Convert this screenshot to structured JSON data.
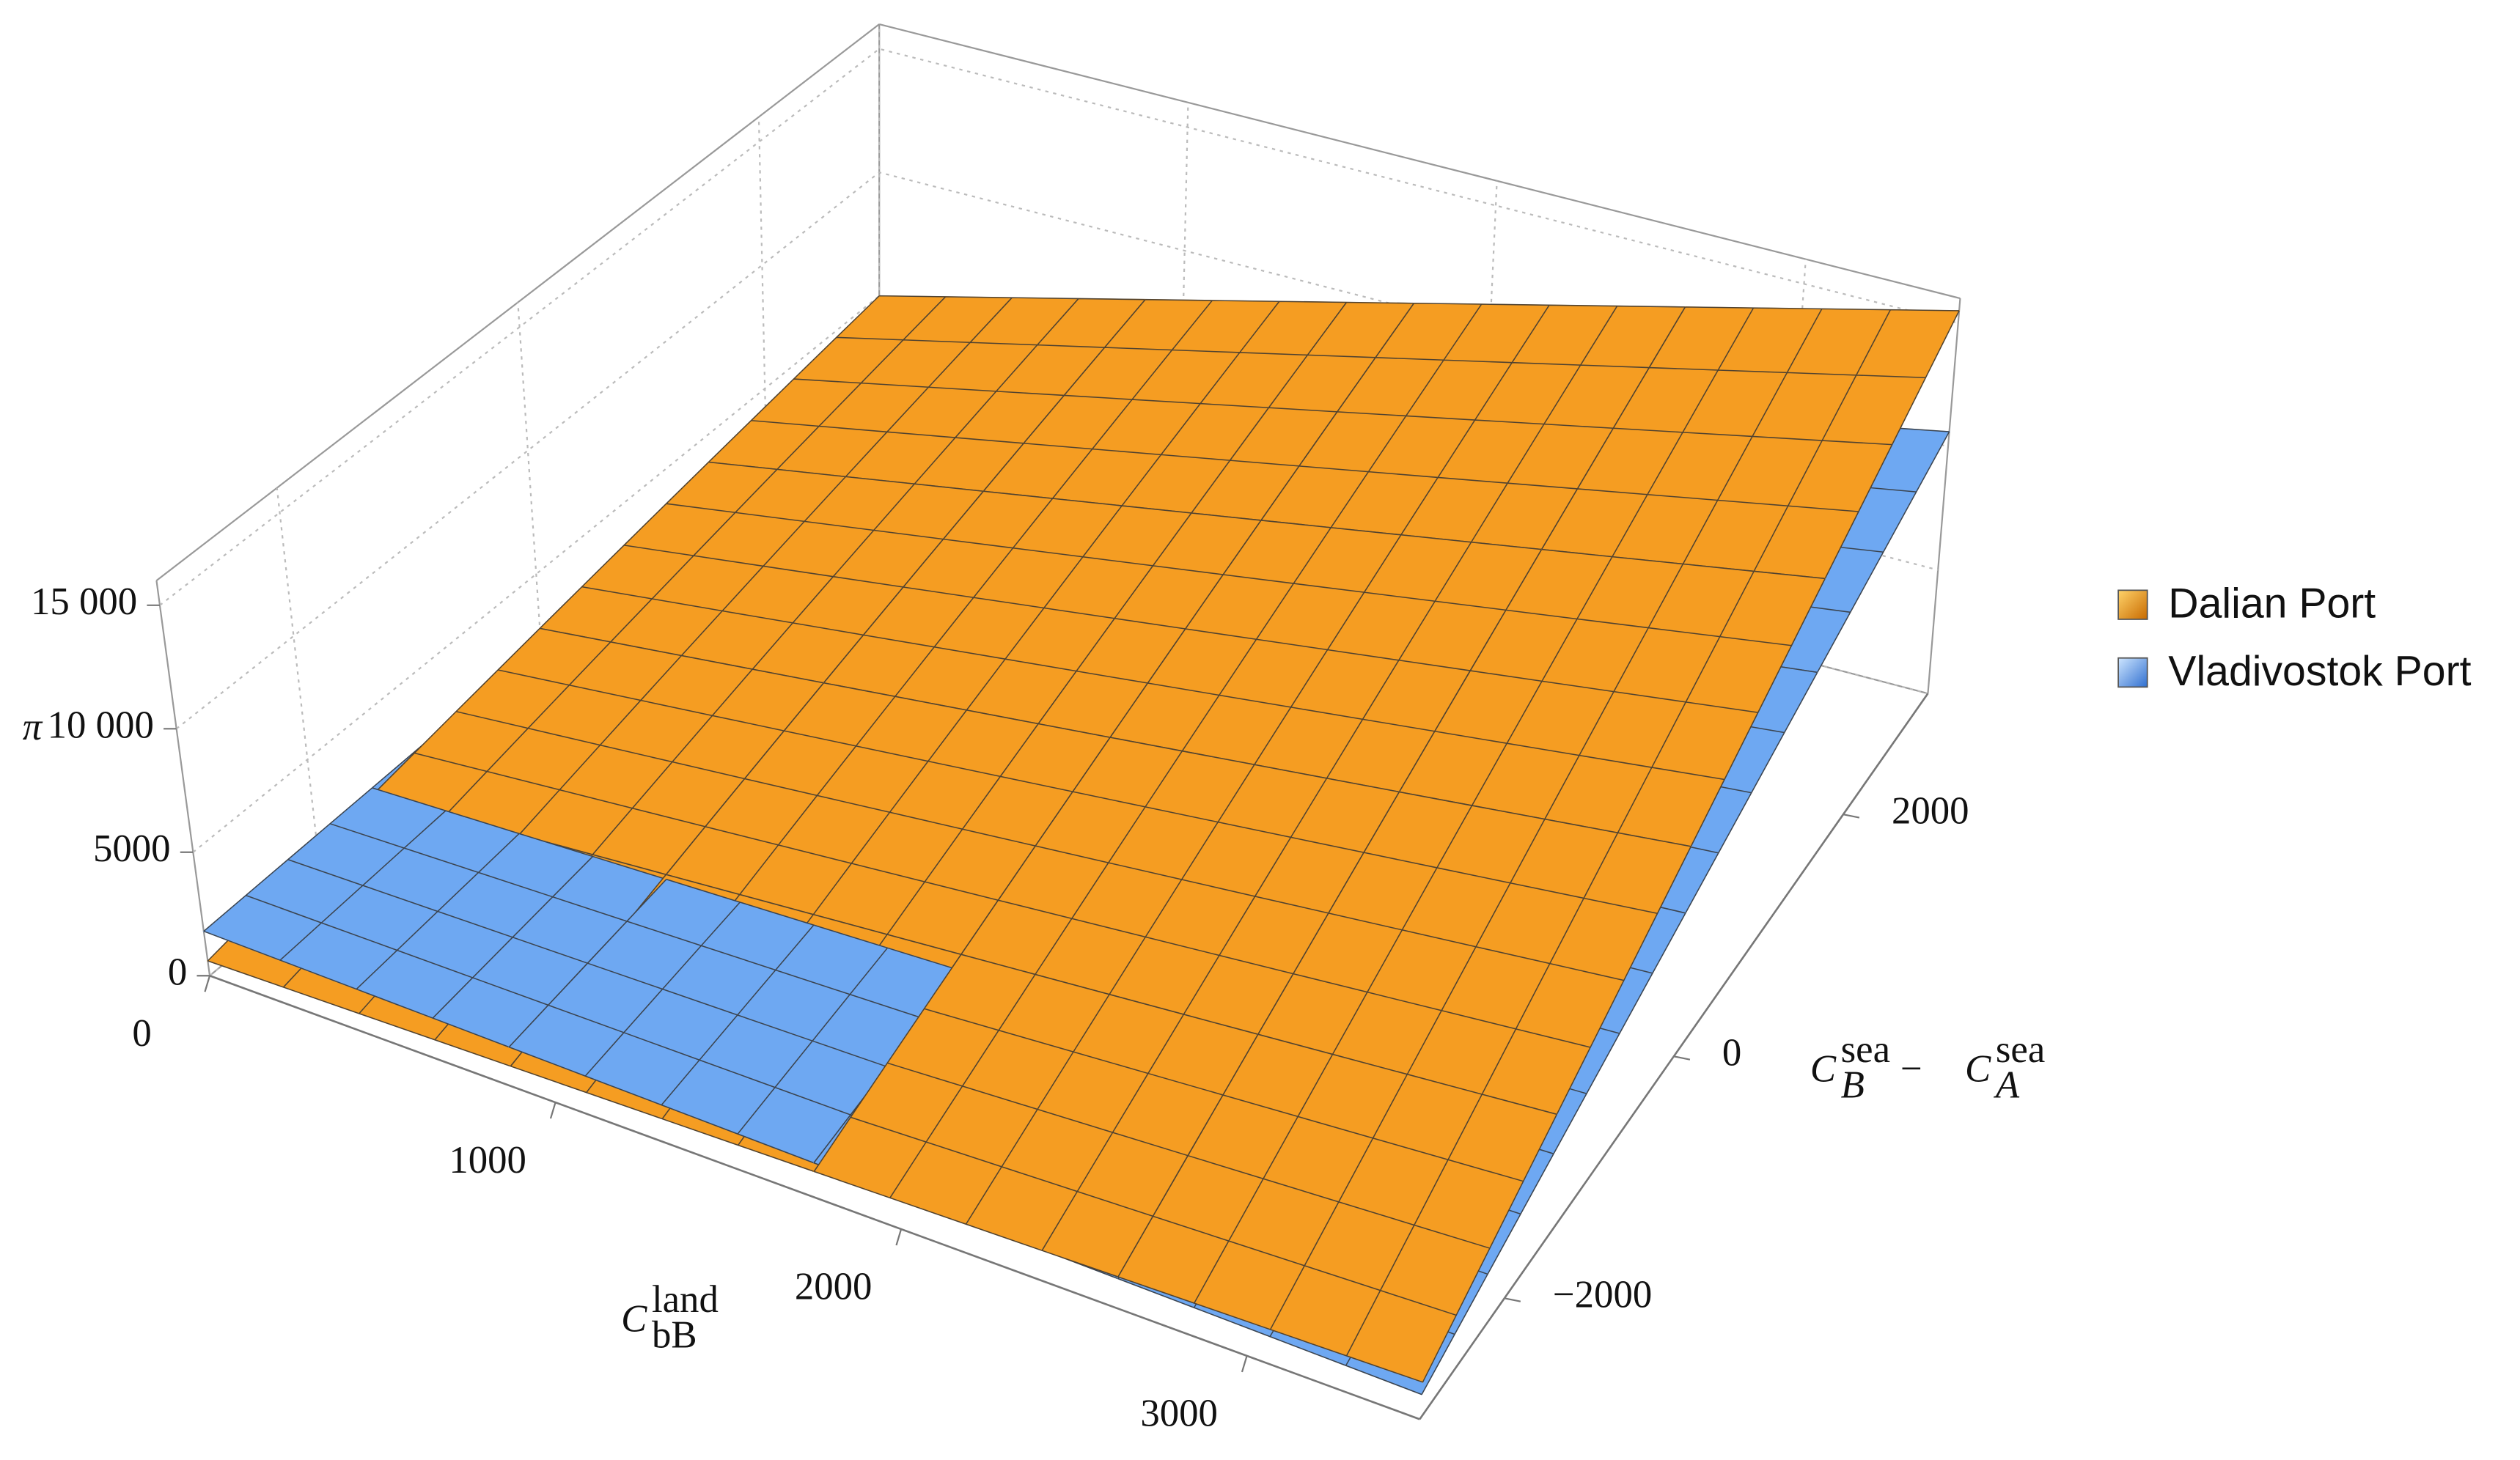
{
  "chart_data": {
    "type": "surface3d",
    "xlabel": {
      "main": "C",
      "sub": "bB",
      "sup": "land"
    },
    "ylabel": [
      {
        "main": "C",
        "sub": "B",
        "sup": "sea"
      },
      "−",
      {
        "main": "C",
        "sub": "A",
        "sup": "sea"
      }
    ],
    "zlabel": "π",
    "xlim": [
      0,
      3500
    ],
    "ylim": [
      -3000,
      3000
    ],
    "zlim": [
      0,
      16000
    ],
    "xticks": [
      0,
      1000,
      2000,
      3000
    ],
    "yticks": [
      {
        "value": -2000,
        "label": "−2000"
      },
      0,
      2000
    ],
    "zticks": [
      0,
      5000,
      {
        "value": 10000,
        "label": "10 000"
      },
      {
        "value": 15000,
        "label": "15 000"
      }
    ],
    "grid": true,
    "legend": "right",
    "x": [
      0,
      875,
      1750,
      2625,
      3500
    ],
    "y": [
      -3000,
      -1500,
      0,
      1500,
      3000
    ],
    "series": [
      {
        "name": "Dalian Port",
        "color": "#f59d22",
        "values": [
          [
            600,
            825,
            1050,
            1275,
            1500
          ],
          [
            1700,
            2525,
            3350,
            4175,
            5000
          ],
          [
            2800,
            4225,
            5650,
            7075,
            8500
          ],
          [
            3900,
            5925,
            7950,
            9975,
            12000
          ],
          [
            5000,
            7625,
            10250,
            12875,
            15500
          ]
        ]
      },
      {
        "name": "Vladivostok Port",
        "color": "#6ea8f2",
        "values": [
          [
            1800,
            1600,
            1400,
            1200,
            1000
          ],
          [
            1975,
            2330,
            2690,
            3040,
            3400
          ],
          [
            2150,
            3060,
            3980,
            4890,
            5800
          ],
          [
            2325,
            3790,
            5260,
            6730,
            8200
          ],
          [
            2500,
            4525,
            6550,
            8575,
            10600
          ]
        ]
      }
    ]
  }
}
